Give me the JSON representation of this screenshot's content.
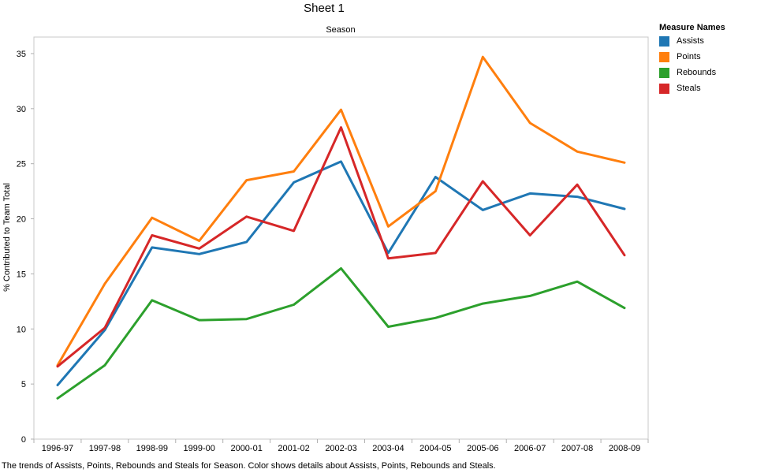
{
  "title": "Sheet 1",
  "caption": "The trends of Assists, Points, Rebounds and Steals for Season.  Color shows details about Assists, Points, Rebounds and Steals.",
  "legend": {
    "title": "Measure Names",
    "items": [
      {
        "label": "Assists",
        "color": "#1f77b4"
      },
      {
        "label": "Points",
        "color": "#ff7f0e"
      },
      {
        "label": "Rebounds",
        "color": "#2ca02c"
      },
      {
        "label": "Steals",
        "color": "#d62728"
      }
    ]
  },
  "chart_data": {
    "type": "line",
    "title": "Sheet 1",
    "xlabel": "Season",
    "ylabel": "% Contributed to Team Total",
    "categories": [
      "1996-97",
      "1997-98",
      "1998-99",
      "1999-00",
      "2000-01",
      "2001-02",
      "2002-03",
      "2003-04",
      "2004-05",
      "2005-06",
      "2006-07",
      "2007-08",
      "2008-09"
    ],
    "yticks": [
      0,
      5,
      10,
      15,
      20,
      25,
      30,
      35
    ],
    "ylim": [
      0,
      36.5
    ],
    "grid": false,
    "legend_position": "right",
    "series": [
      {
        "name": "Assists",
        "color": "#1f77b4",
        "values": [
          4.9,
          9.9,
          17.4,
          16.8,
          17.9,
          23.3,
          25.2,
          16.9,
          23.8,
          20.8,
          22.3,
          22.0,
          20.9
        ]
      },
      {
        "name": "Points",
        "color": "#ff7f0e",
        "values": [
          6.7,
          14.1,
          20.1,
          18.0,
          23.5,
          24.3,
          29.9,
          19.3,
          22.5,
          34.7,
          28.7,
          26.1,
          25.1
        ]
      },
      {
        "name": "Rebounds",
        "color": "#2ca02c",
        "values": [
          3.7,
          6.7,
          12.6,
          10.8,
          10.9,
          12.2,
          15.5,
          10.2,
          11.0,
          12.3,
          13.0,
          14.3,
          11.9
        ]
      },
      {
        "name": "Steals",
        "color": "#d62728",
        "values": [
          6.6,
          10.1,
          18.5,
          17.3,
          20.2,
          18.9,
          28.3,
          16.4,
          16.9,
          23.4,
          18.5,
          23.1,
          16.7
        ]
      }
    ]
  }
}
